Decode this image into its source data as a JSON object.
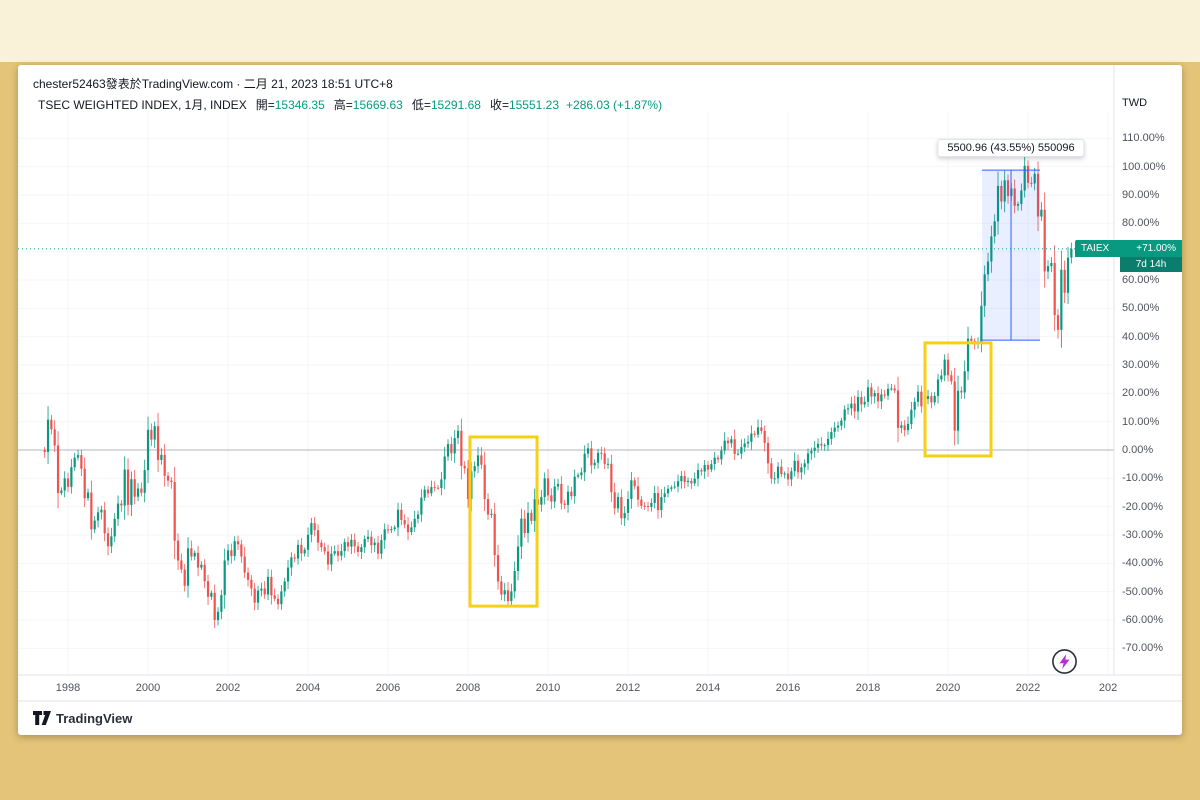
{
  "page": {
    "bg_top": "#f9f2d8",
    "bg_main": "#e4c478"
  },
  "header": {
    "byline": "chester52463發表於TradingView.com · 二月 21, 2023 18:51 UTC+8"
  },
  "legend": {
    "symbol": "TSEC WEIGHTED INDEX, 1月, INDEX",
    "open_label": "開=",
    "open": "15346.35",
    "high_label": "高=",
    "high": "15669.63",
    "low_label": "低=",
    "low": "15291.68",
    "close_label": "收=",
    "close": "15551.23",
    "change": "+286.03 (+1.87%)"
  },
  "price_scale": {
    "currency": "TWD",
    "labels": [
      "110.00%",
      "100.00%",
      "90.00%",
      "80.00%",
      "70.00%",
      "60.00%",
      "50.00%",
      "40.00%",
      "30.00%",
      "20.00%",
      "10.00%",
      "0.00%",
      "-10.00%",
      "-20.00%",
      "-30.00%",
      "-40.00%",
      "-50.00%",
      "-60.00%",
      "-70.00%"
    ]
  },
  "time_scale": {
    "labels": [
      "1998",
      "2000",
      "2002",
      "2004",
      "2006",
      "2008",
      "2010",
      "2012",
      "2014",
      "2016",
      "2018",
      "2020",
      "2022",
      "202"
    ]
  },
  "badge": {
    "symbol": "TAIEX",
    "change": "+71.00%",
    "countdown": "7d 14h"
  },
  "measure_label": {
    "text": "5500.96 (43.55%) 550096"
  },
  "footer": {
    "brand": "TradingView"
  },
  "colors": {
    "up": "#089981",
    "down": "#ef5350",
    "highlight": "#f7cf13",
    "measure": "#2962ff",
    "bg_top": "#f9f2d8",
    "bg_main": "#e4c478"
  },
  "chart_data": {
    "type": "candlestick",
    "title": "TSEC WEIGHTED INDEX (TAIEX), 1-month candles, percent-change scale",
    "x_range": [
      "1997-06",
      "2023-02"
    ],
    "ylim": [
      -70,
      110
    ],
    "ylabel": "% change (TWD)",
    "grid": "off",
    "current_line_pct": 71.0,
    "closes_pct": [
      -0.7,
      10.7,
      7.3,
      1.6,
      -15.2,
      -14.3,
      -10.0,
      -13.0,
      -6.1,
      -2.7,
      -1.8,
      -6.6,
      -17.0,
      -15.0,
      -28.0,
      -24.9,
      -22.0,
      -21.1,
      -29.4,
      -34.0,
      -30.5,
      -24.3,
      -18.9,
      -19.6,
      -6.9,
      -19.4,
      -10.3,
      -16.5,
      -13.6,
      -15.1,
      -7.1,
      7.1,
      3.7,
      8.4,
      -3.5,
      -1.7,
      -9.1,
      -10.8,
      -11.3,
      -32.0,
      -39.0,
      -42.2,
      -47.9,
      -34.7,
      -37.6,
      -36.3,
      -41.5,
      -40.5,
      -46.3,
      -51.8,
      -50.4,
      -60.0,
      -57.1,
      -51.2,
      -39.0,
      -35.4,
      -37.4,
      -32.2,
      -33.3,
      -37.6,
      -43.3,
      -45.8,
      -48.9,
      -53.9,
      -49.6,
      -48.9,
      -51.0,
      -44.8,
      -51.3,
      -52.5,
      -54.4,
      -49.9,
      -46.4,
      -41.5,
      -37.9,
      -38.3,
      -33.5,
      -36.5,
      -35.2,
      -29.9,
      -25.8,
      -28.3,
      -32.7,
      -34.3,
      -35.8,
      -40.4,
      -36.6,
      -35.7,
      -37.3,
      -35.7,
      -32.5,
      -34.1,
      -31.7,
      -34.0,
      -36.0,
      -34.3,
      -31.4,
      -30.6,
      -33.6,
      -32.7,
      -36.6,
      -31.8,
      -28.0,
      -28.2,
      -27.9,
      -27.3,
      -21.1,
      -24.7,
      -26.3,
      -29.0,
      -27.3,
      -24.3,
      -22.8,
      -16.8,
      -14.0,
      -15.3,
      -13.1,
      -13.3,
      -13.4,
      -10.4,
      -2.3,
      2.1,
      -1.2,
      4.2,
      6.8,
      -5.6,
      -6.5,
      -17.3,
      -7.5,
      -5.7,
      -1.9,
      -5.2,
      -17.3,
      -22.8,
      -22.5,
      -37.1,
      -46.4,
      -51.0,
      -49.5,
      -53.3,
      -49.9,
      -42.7,
      -34.1,
      -24.2,
      -29.3,
      -22.2,
      -25.0,
      -17.4,
      -19.3,
      -16.6,
      -10.0,
      -16.0,
      -18.2,
      -12.9,
      -12.0,
      -18.9,
      -19.4,
      -14.7,
      -16.3,
      -9.4,
      -8.9,
      -7.9,
      -1.3,
      0.6,
      -5.4,
      -4.5,
      -1.0,
      -1.2,
      -4.9,
      -4.9,
      -14.9,
      -20.6,
      -16.6,
      -24.1,
      -22.2,
      -17.3,
      -10.7,
      -12.8,
      -17.5,
      -19.7,
      -19.8,
      -20.1,
      -18.7,
      -15.2,
      -21.2,
      -16.6,
      -15.3,
      -13.7,
      -13.2,
      -12.9,
      -11.0,
      -9.2,
      -11.3,
      -10.9,
      -11.8,
      -10.1,
      -7.1,
      -7.6,
      -5.3,
      -6.9,
      -5.0,
      -2.7,
      -3.3,
      -0.2,
      3.3,
      2.4,
      3.8,
      -1.4,
      -1.3,
      1.0,
      2.3,
      2.9,
      5.8,
      5.4,
      8.0,
      6.7,
      2.5,
      -4.7,
      -10.1,
      -10.0,
      -5.9,
      -8.5,
      -8.3,
      -10.4,
      -7.5,
      -3.8,
      -7.9,
      -6.1,
      -4.7,
      -1.2,
      -0.3,
      0.8,
      2.2,
      1.6,
      1.7,
      3.9,
      6.4,
      7.9,
      8.6,
      10.4,
      14.3,
      14.7,
      16.4,
      13.6,
      18.7,
      16.1,
      17.0,
      22.1,
      18.9,
      20.1,
      17.2,
      19.6,
      19.2,
      21.6,
      21.7,
      21.0,
      7.8,
      8.7,
      7.0,
      9.2,
      14.2,
      17.0,
      20.6,
      15.4,
      18.0,
      19.0,
      16.8,
      19.1,
      24.9,
      26.3,
      31.9,
      26.4,
      24.2,
      6.8,
      20.9,
      20.3,
      27.8,
      39.3,
      38.5,
      37.6,
      38.0,
      50.9,
      62.0,
      66.5,
      75.4,
      80.7,
      93.2,
      87.7,
      95.2,
      89.6,
      92.3,
      86.2,
      86.8,
      91.6,
      100.3,
      94.3,
      94.1,
      97.5,
      82.4,
      84.8,
      63.0,
      64.9,
      66.0,
      47.6,
      42.4,
      63.6,
      55.5,
      67.9,
      71.0
    ],
    "annotations": [
      {
        "type": "box",
        "from_index": 127.6,
        "to_index": 147.7,
        "top_pct": 4.6,
        "bottom_pct": -55.1
      },
      {
        "type": "box",
        "from_index": 264.1,
        "to_index": 283.9,
        "top_pct": 37.8,
        "bottom_pct": -2.1
      },
      {
        "type": "price_range",
        "from_index": 281.2,
        "to_index": 298.6,
        "top_pct": 98.8,
        "bottom_pct": 38.8
      }
    ]
  }
}
